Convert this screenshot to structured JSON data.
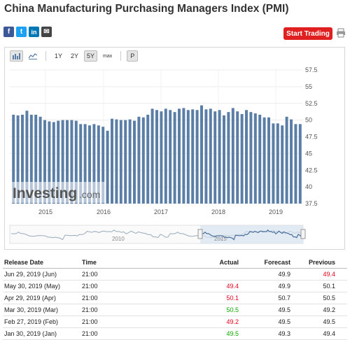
{
  "page": {
    "title": "China Manufacturing Purchasing Managers Index (PMI)"
  },
  "share": [
    {
      "name": "facebook-icon",
      "glyph": "f"
    },
    {
      "name": "twitter-icon",
      "glyph": "t"
    },
    {
      "name": "linkedin-icon",
      "glyph": "in"
    },
    {
      "name": "email-icon",
      "glyph": "✉"
    }
  ],
  "actions": {
    "start_trading": "Start Trading"
  },
  "toolbar": {
    "r1y": "1Y",
    "r2y": "2Y",
    "r5y": "5Y",
    "rmax": "max",
    "p": "P"
  },
  "watermark": {
    "brand": "Investing",
    "suffix": ".com"
  },
  "navigator": {
    "labels": [
      "2010",
      "2015"
    ]
  },
  "colors": {
    "bar": "#5b7ea7",
    "up": "#0ea600",
    "down": "#e2001a",
    "button": "#e02020"
  },
  "chart_data": {
    "type": "bar",
    "y_axis_position": "right",
    "ylim": [
      37.5,
      57.5
    ],
    "yticks": [
      "57.5",
      "55",
      "52.5",
      "50",
      "47.5",
      "45",
      "42.5",
      "40",
      "37.5"
    ],
    "xticks": [
      "2015",
      "2016",
      "2017",
      "2018",
      "2019"
    ],
    "grid": true,
    "values": [
      50.8,
      50.7,
      50.8,
      51.4,
      50.8,
      50.8,
      50.5,
      50.0,
      49.8,
      49.7,
      49.9,
      50.0,
      50.0,
      50.0,
      49.9,
      49.4,
      49.4,
      49.2,
      49.4,
      49.2,
      49.0,
      48.4,
      50.2,
      50.1,
      50.0,
      50.0,
      50.1,
      49.9,
      50.5,
      50.4,
      50.8,
      51.7,
      51.5,
      51.3,
      51.7,
      51.5,
      51.2,
      51.7,
      51.8,
      51.5,
      51.6,
      51.5,
      52.2,
      51.6,
      51.7,
      51.3,
      51.5,
      50.7,
      51.2,
      51.8,
      51.3,
      50.9,
      51.5,
      51.2,
      51.0,
      50.8,
      50.4,
      50.4,
      49.5,
      49.5,
      49.2,
      50.5,
      50.1,
      49.4,
      49.4
    ]
  },
  "table": {
    "headers": {
      "date": "Release Date",
      "time": "Time",
      "actual": "Actual",
      "forecast": "Forecast",
      "previous": "Previous"
    },
    "rows": [
      {
        "date": "Jun 29, 2019 (Jun)",
        "time": "21:00",
        "actual": "",
        "actual_dir": "",
        "forecast": "49.9",
        "previous": "49.4",
        "previous_dir": "down"
      },
      {
        "date": "May 30, 2019 (May)",
        "time": "21:00",
        "actual": "49.4",
        "actual_dir": "down",
        "forecast": "49.9",
        "previous": "50.1",
        "previous_dir": ""
      },
      {
        "date": "Apr 29, 2019 (Apr)",
        "time": "21:00",
        "actual": "50.1",
        "actual_dir": "down",
        "forecast": "50.7",
        "previous": "50.5",
        "previous_dir": ""
      },
      {
        "date": "Mar 30, 2019 (Mar)",
        "time": "21:00",
        "actual": "50.5",
        "actual_dir": "up",
        "forecast": "49.5",
        "previous": "49.2",
        "previous_dir": ""
      },
      {
        "date": "Feb 27, 2019 (Feb)",
        "time": "21:00",
        "actual": "49.2",
        "actual_dir": "down",
        "forecast": "49.5",
        "previous": "49.5",
        "previous_dir": ""
      },
      {
        "date": "Jan 30, 2019 (Jan)",
        "time": "21:00",
        "actual": "49.5",
        "actual_dir": "up",
        "forecast": "49.3",
        "previous": "49.4",
        "previous_dir": ""
      }
    ]
  }
}
